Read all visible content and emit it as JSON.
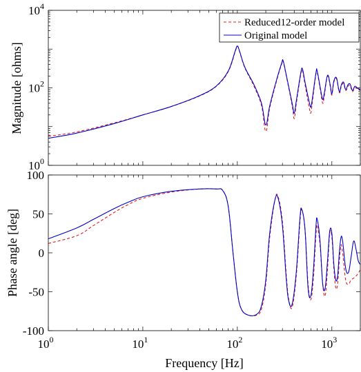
{
  "chart_data": [
    {
      "type": "line",
      "ylabel": "Magnitude [ohms]",
      "xlabel": "",
      "xscale": "log",
      "yscale": "log",
      "xlim": [
        1,
        2000
      ],
      "ylim": [
        1,
        10000
      ],
      "xticks": [
        1,
        10,
        100,
        1000
      ],
      "yticks": [
        1,
        100,
        10000
      ],
      "ytick_labels": [
        {
          "base": "10",
          "exp": "0"
        },
        {
          "base": "10",
          "exp": "2"
        },
        {
          "base": "10",
          "exp": "4"
        }
      ],
      "legend": {
        "position": "top-right"
      },
      "series": [
        {
          "name": "Reduced12-order model",
          "color": "#e41a1c",
          "style": "dashed",
          "points": [
            [
              1,
              5.6
            ],
            [
              2,
              7.3
            ],
            [
              5,
              12.5
            ],
            [
              10,
              20
            ],
            [
              20,
              33
            ],
            [
              40,
              62
            ],
            [
              60,
              110
            ],
            [
              80,
              260
            ],
            [
              95,
              860
            ],
            [
              100,
              1180
            ],
            [
              105,
              900
            ],
            [
              120,
              330
            ],
            [
              150,
              110
            ],
            [
              180,
              35
            ],
            [
              200,
              7.5
            ],
            [
              220,
              30
            ],
            [
              260,
              150
            ],
            [
              295,
              420
            ],
            [
              305,
              480
            ],
            [
              330,
              200
            ],
            [
              380,
              35
            ],
            [
              400,
              16
            ],
            [
              420,
              38
            ],
            [
              470,
              230
            ],
            [
              490,
              270
            ],
            [
              520,
              120
            ],
            [
              580,
              28
            ],
            [
              600,
              23
            ],
            [
              620,
              40
            ],
            [
              680,
              240
            ],
            [
              700,
              250
            ],
            [
              760,
              80
            ],
            [
              800,
              40
            ],
            [
              830,
              60
            ],
            [
              900,
              200
            ],
            [
              960,
              110
            ],
            [
              1000,
              65
            ],
            [
              1050,
              140
            ],
            [
              1120,
              170
            ],
            [
              1200,
              75
            ],
            [
              1260,
              110
            ],
            [
              1330,
              130
            ],
            [
              1400,
              85
            ],
            [
              1480,
              110
            ],
            [
              1560,
              115
            ],
            [
              1650,
              80
            ],
            [
              1750,
              100
            ],
            [
              1850,
              95
            ],
            [
              2000,
              85
            ]
          ]
        },
        {
          "name": "Original model",
          "color": "#0000cc",
          "style": "solid",
          "points": [
            [
              1,
              5.0
            ],
            [
              2,
              6.8
            ],
            [
              5,
              12
            ],
            [
              10,
              20
            ],
            [
              20,
              33
            ],
            [
              40,
              63
            ],
            [
              60,
              112
            ],
            [
              80,
              270
            ],
            [
              95,
              900
            ],
            [
              100,
              1200
            ],
            [
              105,
              920
            ],
            [
              120,
              340
            ],
            [
              150,
              120
            ],
            [
              180,
              40
            ],
            [
              200,
              11
            ],
            [
              220,
              34
            ],
            [
              260,
              160
            ],
            [
              295,
              440
            ],
            [
              305,
              500
            ],
            [
              330,
              210
            ],
            [
              380,
              40
            ],
            [
              400,
              22
            ],
            [
              420,
              45
            ],
            [
              470,
              250
            ],
            [
              490,
              300
            ],
            [
              520,
              140
            ],
            [
              580,
              40
            ],
            [
              600,
              32
            ],
            [
              620,
              50
            ],
            [
              680,
              250
            ],
            [
              700,
              270
            ],
            [
              760,
              90
            ],
            [
              800,
              50
            ],
            [
              830,
              70
            ],
            [
              900,
              210
            ],
            [
              960,
              120
            ],
            [
              1000,
              70
            ],
            [
              1050,
              150
            ],
            [
              1120,
              180
            ],
            [
              1200,
              80
            ],
            [
              1260,
              120
            ],
            [
              1330,
              140
            ],
            [
              1400,
              90
            ],
            [
              1480,
              120
            ],
            [
              1560,
              125
            ],
            [
              1650,
              85
            ],
            [
              1750,
              110
            ],
            [
              1850,
              100
            ],
            [
              2000,
              90
            ]
          ]
        }
      ]
    },
    {
      "type": "line",
      "ylabel": "Phase angle [deg]",
      "xlabel": "Frequency [Hz]",
      "xscale": "log",
      "xlim": [
        1,
        2000
      ],
      "ylim": [
        -100,
        100
      ],
      "xticks": [
        1,
        10,
        100,
        1000
      ],
      "xtick_labels": [
        {
          "base": "10",
          "exp": "0"
        },
        {
          "base": "10",
          "exp": "1"
        },
        {
          "base": "10",
          "exp": "2"
        },
        {
          "base": "10",
          "exp": "3"
        }
      ],
      "yticks": [
        -100,
        -50,
        0,
        50,
        100
      ],
      "ytick_labels": [
        "-100",
        "-50",
        "0",
        "50",
        "100"
      ],
      "series": [
        {
          "name": "Reduced12-order model",
          "color": "#e41a1c",
          "style": "dashed",
          "points": [
            [
              1,
              12
            ],
            [
              2,
              22
            ],
            [
              3,
              35
            ],
            [
              5,
              52
            ],
            [
              7,
              62
            ],
            [
              10,
              70
            ],
            [
              20,
              78
            ],
            [
              40,
              82
            ],
            [
              60,
              82
            ],
            [
              70,
              80
            ],
            [
              80,
              60
            ],
            [
              90,
              0
            ],
            [
              100,
              -50
            ],
            [
              110,
              -72
            ],
            [
              130,
              -80
            ],
            [
              160,
              -80
            ],
            [
              180,
              -72
            ],
            [
              200,
              -40
            ],
            [
              220,
              20
            ],
            [
              250,
              68
            ],
            [
              270,
              72
            ],
            [
              300,
              40
            ],
            [
              330,
              -30
            ],
            [
              350,
              -60
            ],
            [
              380,
              -70
            ],
            [
              420,
              -30
            ],
            [
              460,
              40
            ],
            [
              480,
              55
            ],
            [
              520,
              30
            ],
            [
              560,
              -40
            ],
            [
              600,
              -60
            ],
            [
              640,
              -30
            ],
            [
              680,
              25
            ],
            [
              700,
              35
            ],
            [
              750,
              10
            ],
            [
              800,
              -40
            ],
            [
              850,
              -55
            ],
            [
              900,
              -20
            ],
            [
              950,
              25
            ],
            [
              1000,
              20
            ],
            [
              1050,
              -20
            ],
            [
              1100,
              -45
            ],
            [
              1150,
              -40
            ],
            [
              1200,
              -10
            ],
            [
              1250,
              10
            ],
            [
              1300,
              0
            ],
            [
              1400,
              -35
            ],
            [
              1500,
              -40
            ],
            [
              1600,
              -35
            ],
            [
              1800,
              -30
            ],
            [
              2000,
              -22
            ]
          ]
        },
        {
          "name": "Original model",
          "color": "#0000cc",
          "style": "solid",
          "points": [
            [
              1,
              18
            ],
            [
              2,
              32
            ],
            [
              3,
              43
            ],
            [
              5,
              57
            ],
            [
              7,
              65
            ],
            [
              10,
              72
            ],
            [
              20,
              79
            ],
            [
              40,
              82
            ],
            [
              60,
              82
            ],
            [
              70,
              80
            ],
            [
              80,
              60
            ],
            [
              90,
              0
            ],
            [
              100,
              -50
            ],
            [
              110,
              -72
            ],
            [
              130,
              -80
            ],
            [
              160,
              -79
            ],
            [
              180,
              -68
            ],
            [
              200,
              -35
            ],
            [
              220,
              25
            ],
            [
              250,
              68
            ],
            [
              270,
              70
            ],
            [
              300,
              35
            ],
            [
              330,
              -35
            ],
            [
              350,
              -62
            ],
            [
              380,
              -66
            ],
            [
              420,
              -25
            ],
            [
              460,
              45
            ],
            [
              480,
              56
            ],
            [
              520,
              30
            ],
            [
              560,
              -45
            ],
            [
              600,
              -55
            ],
            [
              640,
              -20
            ],
            [
              680,
              35
            ],
            [
              700,
              43
            ],
            [
              750,
              15
            ],
            [
              800,
              -40
            ],
            [
              850,
              -45
            ],
            [
              900,
              -10
            ],
            [
              950,
              28
            ],
            [
              1000,
              25
            ],
            [
              1050,
              -15
            ],
            [
              1100,
              -35
            ],
            [
              1150,
              -30
            ],
            [
              1200,
              0
            ],
            [
              1250,
              20
            ],
            [
              1300,
              15
            ],
            [
              1400,
              -20
            ],
            [
              1500,
              -25
            ],
            [
              1600,
              -5
            ],
            [
              1700,
              15
            ],
            [
              1800,
              5
            ],
            [
              1900,
              -10
            ],
            [
              2000,
              -15
            ]
          ]
        }
      ]
    }
  ]
}
